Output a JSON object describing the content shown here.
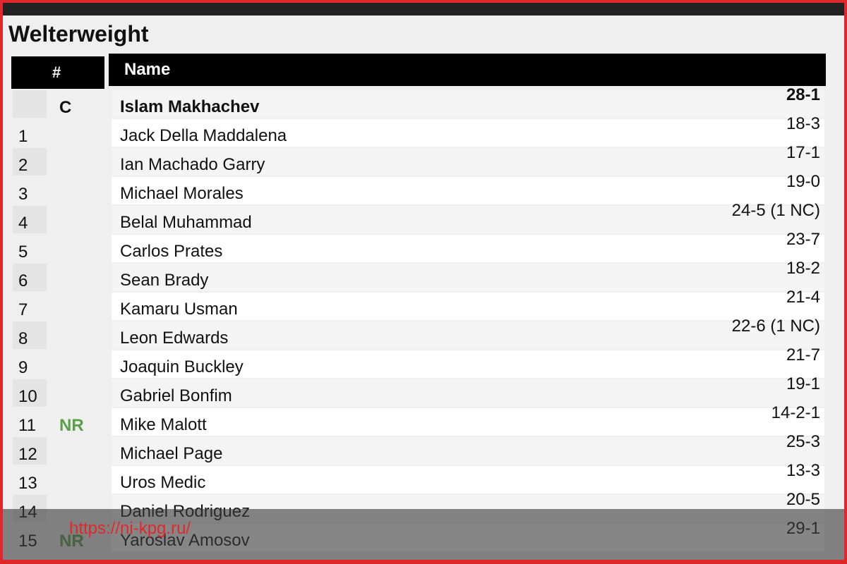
{
  "title": "Welterweight",
  "columns": {
    "rank": "#",
    "name": "Name"
  },
  "colors": {
    "nr_badge": "#5aa04a",
    "header_bg": "#000000",
    "watermark": "#e0282b"
  },
  "rows": [
    {
      "rank": "",
      "movement": "C",
      "name": "Islam Makhachev",
      "record": "28-1",
      "champion": true
    },
    {
      "rank": "1",
      "movement": "",
      "name": "Jack Della Maddalena",
      "record": "18-3"
    },
    {
      "rank": "2",
      "movement": "",
      "name": "Ian Machado Garry",
      "record": "17-1"
    },
    {
      "rank": "3",
      "movement": "",
      "name": "Michael Morales",
      "record": "19-0"
    },
    {
      "rank": "4",
      "movement": "",
      "name": "Belal Muhammad",
      "record": "24-5 (1 NC)"
    },
    {
      "rank": "5",
      "movement": "",
      "name": "Carlos Prates",
      "record": "23-7"
    },
    {
      "rank": "6",
      "movement": "",
      "name": "Sean Brady",
      "record": "18-2"
    },
    {
      "rank": "7",
      "movement": "",
      "name": "Kamaru Usman",
      "record": "21-4"
    },
    {
      "rank": "8",
      "movement": "",
      "name": "Leon Edwards",
      "record": "22-6 (1 NC)"
    },
    {
      "rank": "9",
      "movement": "",
      "name": "Joaquin Buckley",
      "record": "21-7"
    },
    {
      "rank": "10",
      "movement": "",
      "name": "Gabriel Bonfim",
      "record": "19-1"
    },
    {
      "rank": "11",
      "movement": "NR",
      "name": "Mike Malott",
      "record": "14-2-1"
    },
    {
      "rank": "12",
      "movement": "",
      "name": "Michael Page",
      "record": "25-3"
    },
    {
      "rank": "13",
      "movement": "",
      "name": "Uros Medic",
      "record": "13-3"
    },
    {
      "rank": "14",
      "movement": "",
      "name": "Daniel Rodriguez",
      "record": "20-5"
    },
    {
      "rank": "15",
      "movement": "NR",
      "name": "Yaroslav Amosov",
      "record": "29-1"
    }
  ],
  "watermark": "https://ni-kpg.ru/"
}
